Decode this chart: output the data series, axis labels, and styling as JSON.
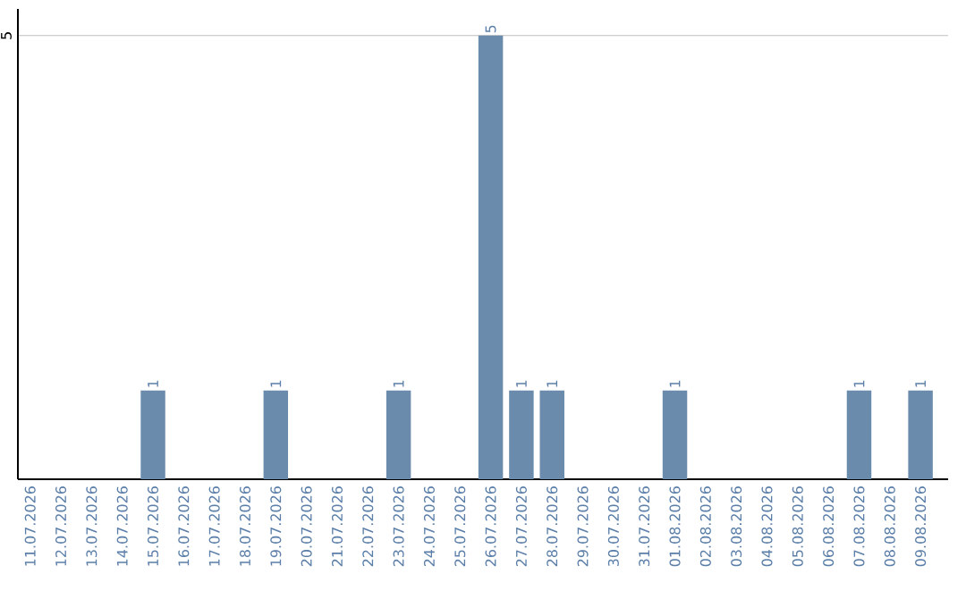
{
  "chart_data": {
    "type": "bar",
    "categories": [
      "11.07.2026",
      "12.07.2026",
      "13.07.2026",
      "14.07.2026",
      "15.07.2026",
      "16.07.2026",
      "17.07.2026",
      "18.07.2026",
      "19.07.2026",
      "20.07.2026",
      "21.07.2026",
      "22.07.2026",
      "23.07.2026",
      "24.07.2026",
      "25.07.2026",
      "26.07.2026",
      "27.07.2026",
      "28.07.2026",
      "29.07.2026",
      "30.07.2026",
      "31.07.2026",
      "01.08.2026",
      "02.08.2026",
      "03.08.2026",
      "04.08.2026",
      "05.08.2026",
      "06.08.2026",
      "07.08.2026",
      "08.08.2026",
      "09.08.2026"
    ],
    "values": [
      0,
      0,
      0,
      0,
      1,
      0,
      0,
      0,
      1,
      0,
      0,
      0,
      1,
      0,
      0,
      5,
      1,
      1,
      0,
      0,
      0,
      1,
      0,
      0,
      0,
      0,
      0,
      1,
      0,
      1
    ],
    "value_labels": [
      null,
      null,
      null,
      null,
      "1",
      null,
      null,
      null,
      "1",
      null,
      null,
      null,
      "1",
      null,
      null,
      "5",
      "1",
      "1",
      null,
      null,
      null,
      "1",
      null,
      null,
      null,
      null,
      null,
      "1",
      null,
      "1"
    ],
    "color": "#6a8bab",
    "ylim": [
      0,
      5.3
    ],
    "yticks": [
      5
    ],
    "grid": "y"
  }
}
